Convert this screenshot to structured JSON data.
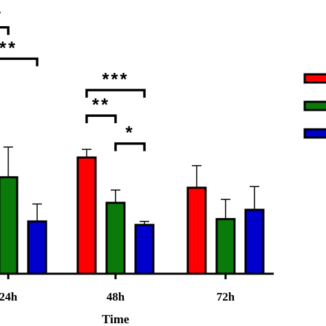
{
  "chart_data": {
    "type": "bar",
    "xlabel": "Time",
    "categories": [
      "24h",
      "48h",
      "72h"
    ],
    "ylim": [
      0,
      1.3
    ],
    "series": [
      {
        "color": "#ff0000",
        "values": [
          null,
          1.0,
          0.74
        ],
        "errors": [
          null,
          0.07,
          0.19
        ]
      },
      {
        "color": "#0a7a0a",
        "values": [
          0.83,
          0.61,
          0.47
        ],
        "errors": [
          0.26,
          0.11,
          0.17
        ]
      },
      {
        "color": "#0000cc",
        "values": [
          0.45,
          0.42,
          0.55
        ],
        "errors": [
          0.15,
          0.03,
          0.2
        ]
      }
    ],
    "significance": [
      {
        "label": "**",
        "from": [
          0,
          0
        ],
        "to": [
          0,
          2
        ],
        "level": 1.85
      },
      {
        "label": "**",
        "from": [
          0,
          0
        ],
        "to": [
          0,
          1
        ],
        "level": 2.12
      },
      {
        "label": "***",
        "from": [
          1,
          0
        ],
        "to": [
          1,
          2
        ],
        "level": 1.58
      },
      {
        "label": "**",
        "from": [
          1,
          0
        ],
        "to": [
          1,
          1
        ],
        "level": 1.36
      },
      {
        "label": "*",
        "from": [
          1,
          1
        ],
        "to": [
          1,
          2
        ],
        "level": 1.12
      }
    ],
    "legend": {
      "placement": "right",
      "entries": 3
    }
  }
}
